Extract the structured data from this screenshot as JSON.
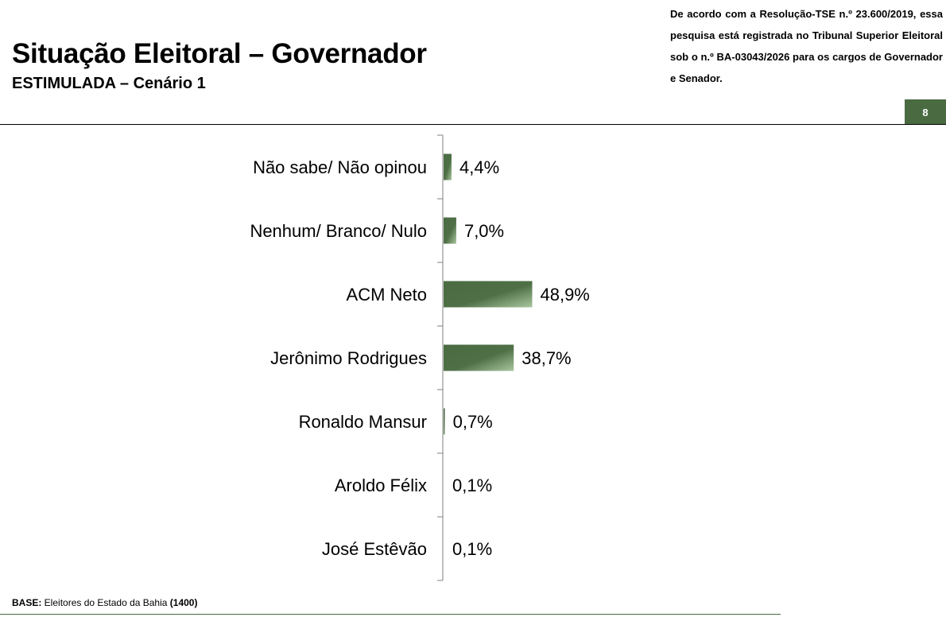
{
  "header": {
    "title": "Situação Eleitoral – Governador",
    "subtitle": "ESTIMULADA – Cenário 1",
    "notice": "De acordo com a Resolução-TSE n.º 23.600/2019, essa pesquisa está registrada no Tribunal Superior Eleitoral sob o n.º BA-03043/2026 para os cargos de Governador e Senador.",
    "page_number": "8"
  },
  "footer": {
    "base_label": "BASE:",
    "base_text": " Eleitores do Estado da Bahia ",
    "base_count": "(1400)"
  },
  "colors": {
    "bar": "#4a6b42",
    "bar_highlight": "#a9c79e",
    "accent": "#4a6b42"
  },
  "chart_data": {
    "type": "bar",
    "orientation": "horizontal",
    "categories": [
      "Não sabe/ Não opinou",
      "Nenhum/ Branco/ Nulo",
      "ACM Neto",
      "Jerônimo Rodrigues",
      "Ronaldo Mansur",
      "Aroldo Félix",
      "José Estêvão"
    ],
    "values": [
      4.4,
      7.0,
      48.9,
      38.7,
      0.7,
      0.1,
      0.1
    ],
    "value_labels": [
      "4,4%",
      "7,0%",
      "48,9%",
      "38,7%",
      "0,7%",
      "0,1%",
      "0,1%"
    ],
    "title": "",
    "xlabel": "",
    "ylabel": "",
    "grid": false,
    "legend": "none"
  }
}
